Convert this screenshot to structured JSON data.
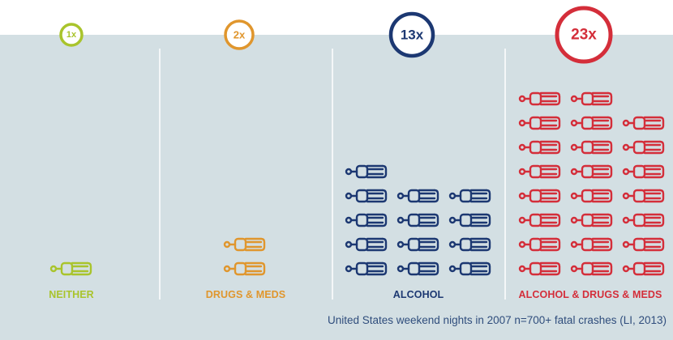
{
  "chart_data": {
    "type": "pictograph",
    "categories": [
      "NEITHER",
      "DRUGS & MEDS",
      "ALCOHOL",
      "ALCOHOL & DRUGS & MEDS"
    ],
    "values": [
      1,
      2,
      13,
      23
    ],
    "value_labels": [
      "1x",
      "2x",
      "13x",
      "23x"
    ],
    "colors": [
      "#a9c42c",
      "#e0962d",
      "#1c3872",
      "#d42e3a"
    ],
    "icon": "person-icon",
    "footnote": "United States weekend nights in 2007 n=700+ fatal crashes (LI, 2013)"
  }
}
